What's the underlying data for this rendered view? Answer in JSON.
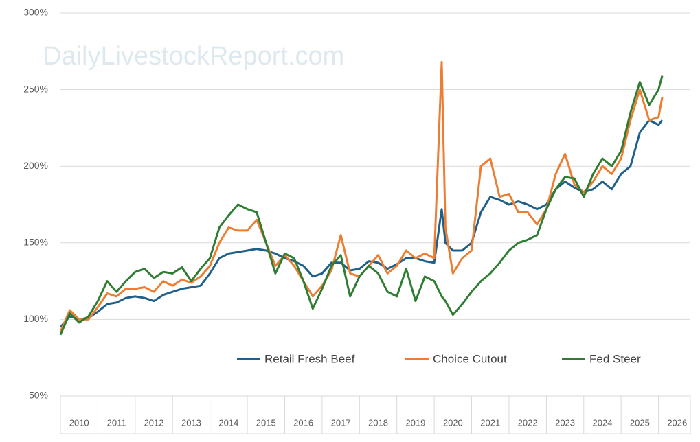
{
  "chart_data": {
    "type": "line",
    "watermark": "DailyLivestockReport.com",
    "categories": [
      "2010",
      "2011",
      "2012",
      "2013",
      "2014",
      "2015",
      "2016",
      "2017",
      "2018",
      "2019",
      "2020",
      "2021",
      "2022",
      "2023",
      "2024",
      "2025",
      "2026"
    ],
    "x": [
      2010,
      2010.25,
      2010.5,
      2010.75,
      2011,
      2011.25,
      2011.5,
      2011.75,
      2012,
      2012.25,
      2012.5,
      2012.75,
      2013,
      2013.25,
      2013.5,
      2013.75,
      2014,
      2014.25,
      2014.5,
      2014.75,
      2015,
      2015.25,
      2015.5,
      2015.75,
      2016,
      2016.25,
      2016.5,
      2016.75,
      2017,
      2017.25,
      2017.5,
      2017.75,
      2018,
      2018.25,
      2018.5,
      2018.75,
      2019,
      2019.25,
      2019.5,
      2019.75,
      2020,
      2020.2,
      2020.3,
      2020.5,
      2020.75,
      2021,
      2021.25,
      2021.5,
      2021.75,
      2022,
      2022.25,
      2022.5,
      2022.75,
      2023,
      2023.25,
      2023.5,
      2023.75,
      2024,
      2024.25,
      2024.5,
      2024.75,
      2025,
      2025.25,
      2025.5,
      2025.75,
      2026,
      2026.1
    ],
    "series": [
      {
        "name": "Retail Fresh Beef",
        "color": "#1f5f8b",
        "values": [
          95,
          102,
          100,
          101,
          105,
          110,
          111,
          114,
          115,
          114,
          112,
          116,
          118,
          120,
          121,
          122,
          130,
          140,
          143,
          144,
          145,
          146,
          145,
          143,
          140,
          138,
          135,
          128,
          130,
          137,
          137,
          132,
          133,
          138,
          137,
          133,
          136,
          140,
          140,
          138,
          137,
          172,
          150,
          145,
          145,
          150,
          170,
          180,
          178,
          175,
          177,
          175,
          172,
          175,
          185,
          190,
          186,
          183,
          185,
          190,
          185,
          195,
          200,
          222,
          230,
          227,
          230
        ]
      },
      {
        "name": "Choice Cutout",
        "color": "#ed7d31",
        "values": [
          92,
          106,
          100,
          100,
          108,
          117,
          115,
          120,
          120,
          121,
          118,
          125,
          122,
          126,
          124,
          128,
          135,
          150,
          160,
          158,
          158,
          165,
          150,
          135,
          142,
          135,
          125,
          115,
          122,
          132,
          155,
          130,
          128,
          135,
          142,
          130,
          135,
          145,
          140,
          143,
          140,
          268,
          160,
          130,
          140,
          145,
          200,
          205,
          180,
          182,
          170,
          170,
          162,
          172,
          195,
          208,
          188,
          183,
          190,
          200,
          195,
          205,
          230,
          250,
          230,
          232,
          245
        ]
      },
      {
        "name": "Fed Steer",
        "color": "#2e7d32",
        "values": [
          90,
          104,
          98,
          102,
          112,
          125,
          118,
          125,
          131,
          133,
          127,
          131,
          130,
          134,
          125,
          133,
          140,
          160,
          168,
          175,
          172,
          170,
          150,
          130,
          143,
          140,
          125,
          107,
          120,
          135,
          142,
          115,
          128,
          135,
          130,
          118,
          115,
          133,
          112,
          128,
          125,
          115,
          112,
          103,
          110,
          118,
          125,
          130,
          137,
          145,
          150,
          152,
          155,
          172,
          185,
          193,
          192,
          180,
          195,
          205,
          200,
          210,
          235,
          255,
          240,
          250,
          259
        ]
      }
    ],
    "xlim": [
      2010,
      2027
    ],
    "ylim": [
      50,
      300
    ],
    "yticks": [
      {
        "value": 50,
        "label": "50%"
      },
      {
        "value": 100,
        "label": "100%"
      },
      {
        "value": 150,
        "label": "150%"
      },
      {
        "value": 200,
        "label": "200%"
      },
      {
        "value": 250,
        "label": "250%"
      },
      {
        "value": 300,
        "label": "300%"
      }
    ],
    "grid": true,
    "legend": "bottom"
  }
}
